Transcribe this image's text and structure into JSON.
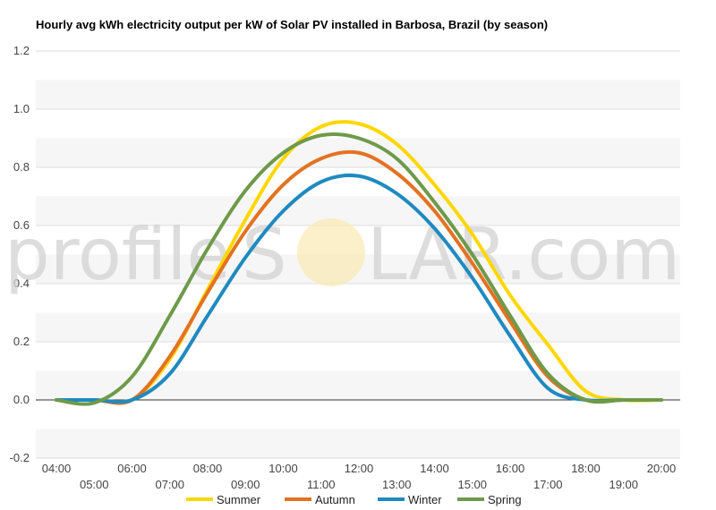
{
  "chart_data": {
    "type": "line",
    "title": "Hourly avg kWh electricity output per kW of Solar PV installed in Barbosa, Brazil (by season)",
    "xlabel": "",
    "ylabel": "",
    "x": [
      "04:00",
      "05:00",
      "06:00",
      "07:00",
      "08:00",
      "09:00",
      "10:00",
      "11:00",
      "12:00",
      "13:00",
      "14:00",
      "15:00",
      "16:00",
      "17:00",
      "18:00",
      "19:00",
      "20:00"
    ],
    "ylim": [
      -0.2,
      1.2
    ],
    "yticks": [
      -0.2,
      0.0,
      0.2,
      0.4,
      0.6,
      0.8,
      1.0,
      1.2
    ],
    "grid": true,
    "legend_position": "bottom",
    "series": [
      {
        "name": "Summer",
        "color": "#FFD700",
        "values": [
          0.0,
          0.0,
          0.0,
          0.14,
          0.38,
          0.62,
          0.83,
          0.94,
          0.95,
          0.88,
          0.74,
          0.57,
          0.36,
          0.19,
          0.03,
          0.0,
          0.0
        ]
      },
      {
        "name": "Autumn",
        "color": "#E37222",
        "values": [
          0.0,
          0.0,
          0.0,
          0.15,
          0.37,
          0.58,
          0.74,
          0.83,
          0.85,
          0.78,
          0.65,
          0.47,
          0.27,
          0.08,
          0.0,
          0.0,
          0.0
        ]
      },
      {
        "name": "Winter",
        "color": "#1F8AC0",
        "values": [
          0.0,
          0.0,
          0.0,
          0.09,
          0.29,
          0.49,
          0.65,
          0.75,
          0.77,
          0.71,
          0.59,
          0.42,
          0.22,
          0.04,
          0.0,
          0.0,
          0.0
        ]
      },
      {
        "name": "Spring",
        "color": "#6E9A4A",
        "values": [
          0.0,
          -0.01,
          0.08,
          0.29,
          0.52,
          0.72,
          0.85,
          0.91,
          0.9,
          0.83,
          0.68,
          0.5,
          0.29,
          0.09,
          0.0,
          0.0,
          0.0
        ]
      }
    ]
  },
  "watermark": {
    "text_left": "profile",
    "text_right": "LAR.com"
  }
}
